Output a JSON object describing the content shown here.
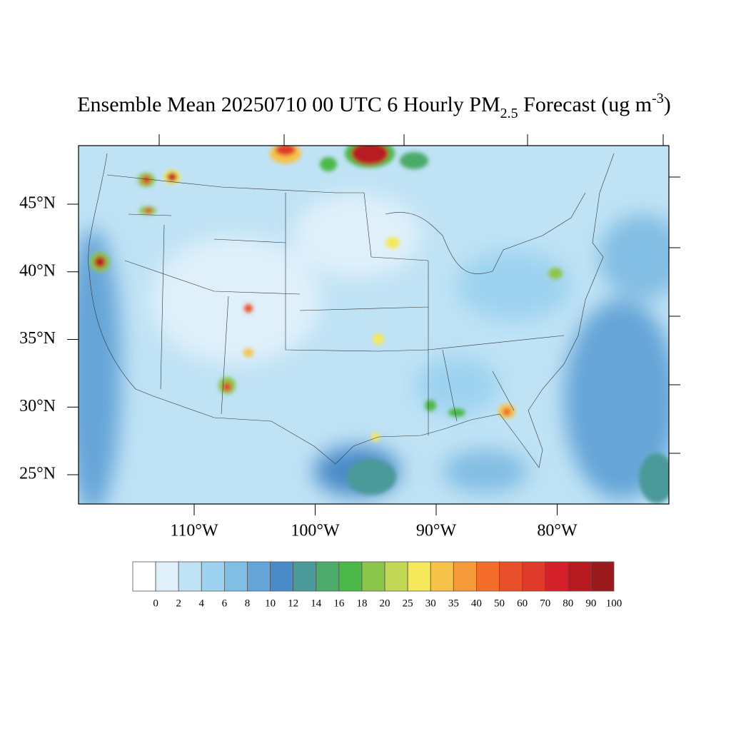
{
  "title": {
    "main": "Ensemble Mean 20250710 00 UTC 6 Hourly PM",
    "sub": "2.5",
    "mid": " Forecast (ug m",
    "sup": "-3",
    "end": ")"
  },
  "lat_ticks": [
    {
      "value": 45,
      "label": "45°N"
    },
    {
      "value": 40,
      "label": "40°N"
    },
    {
      "value": 35,
      "label": "35°N"
    },
    {
      "value": 30,
      "label": "30°N"
    },
    {
      "value": 25,
      "label": "25°N"
    }
  ],
  "lon_ticks": [
    {
      "value": -110,
      "label": "110°W"
    },
    {
      "value": -100,
      "label": "100°W"
    },
    {
      "value": -90,
      "label": "90°W"
    },
    {
      "value": -80,
      "label": "80°W"
    }
  ],
  "colorbar": {
    "levels": [
      0,
      2,
      4,
      6,
      8,
      10,
      12,
      14,
      16,
      18,
      20,
      25,
      30,
      35,
      40,
      50,
      60,
      70,
      80,
      90,
      100
    ],
    "colors": [
      "#ffffff",
      "#dff0fa",
      "#bfe2f5",
      "#9dd3f0",
      "#82bde3",
      "#66a5d8",
      "#4a8ac8",
      "#4b9a9a",
      "#4caa6a",
      "#4cb84a",
      "#8cc54c",
      "#c2d854",
      "#f5e85a",
      "#f6c24a",
      "#f69a3a",
      "#f46d2a",
      "#e8502c",
      "#e03a2a",
      "#d4202a",
      "#b81a22",
      "#9a1a1e"
    ]
  }
}
